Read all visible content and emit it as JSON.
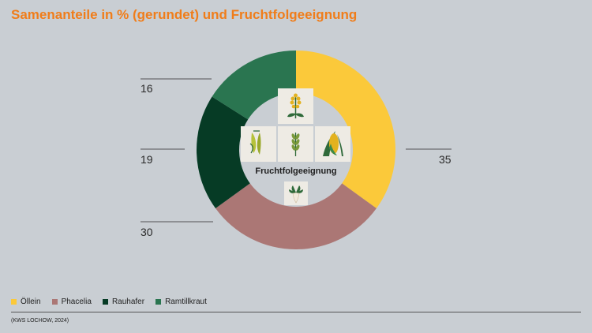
{
  "title": "Samenanteile in % (gerundet) und Fruchtfolgeeignung",
  "center_label": "Fruchtfolgeeignung",
  "source": "(KWS LOCHOW, 2024)",
  "icons": [
    "rapeseed-icon",
    "pea-icon",
    "grain-icon",
    "corn-icon",
    "beet-icon"
  ],
  "chart_data": {
    "type": "pie",
    "variant": "donut",
    "start": "top, clockwise",
    "categories": [
      "Öllein",
      "Phacelia",
      "Rauhafer",
      "Ramtillkraut"
    ],
    "values": [
      35,
      30,
      19,
      16
    ],
    "colors": [
      "#fbc93a",
      "#ab7775",
      "#063b25",
      "#2a7550"
    ],
    "legend": "bottom-left"
  }
}
